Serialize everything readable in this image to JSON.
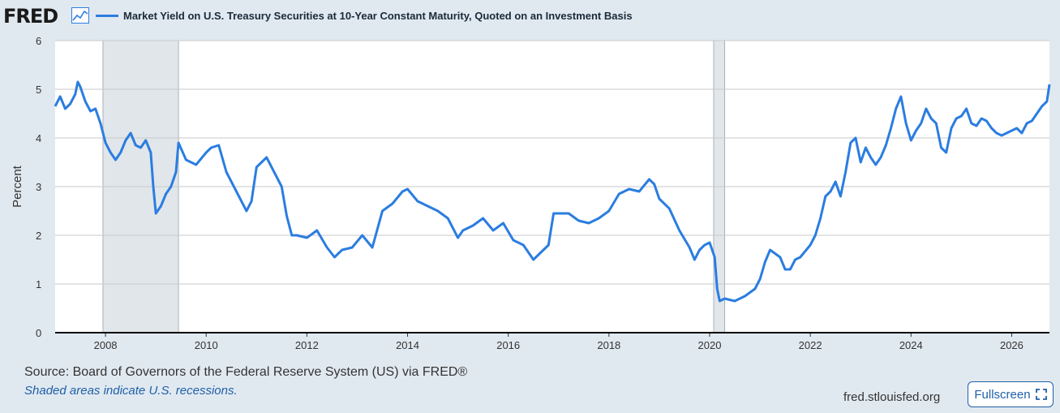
{
  "header": {
    "logo": "FRED",
    "logo_icon": "line-chart-icon",
    "series_title": "Market Yield on U.S. Treasury Securities at 10-Year Constant Maturity, Quoted on an Investment Basis"
  },
  "footer": {
    "source": "Source: Board of Governors of the Federal Reserve System (US) via FRED®",
    "note": "Shaded areas indicate U.S. recessions.",
    "site": "fred.stlouisfed.org",
    "fullscreen_label": "Fullscreen",
    "fullscreen_icon": "expand-corners-icon"
  },
  "colors": {
    "line": "#2b7de0",
    "plot_bg": "#ffffff",
    "recession": "#e1e6ea",
    "page_bg": "#e1e9f0"
  },
  "chart_data": {
    "type": "line",
    "title": "Market Yield on U.S. Treasury Securities at 10-Year Constant Maturity, Quoted on an Investment Basis",
    "xlabel": "",
    "ylabel": "Percent",
    "xlim": [
      2007.0,
      2026.75
    ],
    "ylim": [
      0,
      6
    ],
    "xticks": [
      2008,
      2010,
      2012,
      2014,
      2016,
      2018,
      2020,
      2022,
      2024,
      2026
    ],
    "yticks": [
      0,
      1,
      2,
      3,
      4,
      5,
      6
    ],
    "grid": "horizontal",
    "recessions": [
      [
        2007.95,
        2009.45
      ],
      [
        2020.08,
        2020.3
      ]
    ],
    "series": [
      {
        "name": "",
        "x": [
          2007.0,
          2007.1,
          2007.2,
          2007.3,
          2007.4,
          2007.45,
          2007.5,
          2007.6,
          2007.7,
          2007.8,
          2007.9,
          2008.0,
          2008.1,
          2008.2,
          2008.3,
          2008.4,
          2008.5,
          2008.6,
          2008.7,
          2008.8,
          2008.9,
          2008.95,
          2009.0,
          2009.1,
          2009.2,
          2009.3,
          2009.4,
          2009.45,
          2009.6,
          2009.8,
          2010.0,
          2010.1,
          2010.25,
          2010.4,
          2010.6,
          2010.8,
          2010.9,
          2011.0,
          2011.1,
          2011.2,
          2011.4,
          2011.5,
          2011.6,
          2011.7,
          2011.8,
          2012.0,
          2012.2,
          2012.4,
          2012.55,
          2012.7,
          2012.9,
          2013.1,
          2013.3,
          2013.5,
          2013.7,
          2013.9,
          2014.0,
          2014.2,
          2014.4,
          2014.6,
          2014.8,
          2015.0,
          2015.1,
          2015.3,
          2015.5,
          2015.7,
          2015.9,
          2016.1,
          2016.3,
          2016.5,
          2016.6,
          2016.8,
          2016.9,
          2017.0,
          2017.2,
          2017.4,
          2017.6,
          2017.8,
          2018.0,
          2018.2,
          2018.4,
          2018.6,
          2018.8,
          2018.9,
          2019.0,
          2019.2,
          2019.4,
          2019.6,
          2019.7,
          2019.8,
          2019.9,
          2020.0,
          2020.1,
          2020.15,
          2020.2,
          2020.3,
          2020.5,
          2020.7,
          2020.9,
          2021.0,
          2021.1,
          2021.2,
          2021.4,
          2021.5,
          2021.6,
          2021.7,
          2021.8,
          2022.0,
          2022.1,
          2022.2,
          2022.3,
          2022.4,
          2022.5,
          2022.6,
          2022.7,
          2022.8,
          2022.9,
          2023.0,
          2023.1,
          2023.2,
          2023.3,
          2023.4,
          2023.5,
          2023.6,
          2023.7,
          2023.8,
          2023.9,
          2024.0,
          2024.1,
          2024.2,
          2024.3,
          2024.4,
          2024.5,
          2024.6,
          2024.7,
          2024.8,
          2024.9,
          2025.0,
          2025.1,
          2025.2,
          2025.3,
          2025.4,
          2025.5,
          2025.6,
          2025.7,
          2025.8,
          2025.9,
          2026.0,
          2026.1,
          2026.2,
          2026.3,
          2026.4,
          2026.5,
          2026.6,
          2026.7,
          2026.75
        ],
        "values": [
          4.65,
          4.85,
          4.6,
          4.7,
          4.9,
          5.15,
          5.05,
          4.75,
          4.55,
          4.6,
          4.3,
          3.9,
          3.7,
          3.55,
          3.7,
          3.95,
          4.1,
          3.85,
          3.8,
          3.95,
          3.7,
          3.0,
          2.45,
          2.6,
          2.85,
          3.0,
          3.3,
          3.9,
          3.55,
          3.45,
          3.7,
          3.8,
          3.85,
          3.3,
          2.9,
          2.5,
          2.7,
          3.4,
          3.5,
          3.6,
          3.2,
          3.0,
          2.4,
          2.0,
          2.0,
          1.95,
          2.1,
          1.75,
          1.55,
          1.7,
          1.75,
          2.0,
          1.75,
          2.5,
          2.65,
          2.9,
          2.95,
          2.7,
          2.6,
          2.5,
          2.35,
          1.95,
          2.1,
          2.2,
          2.35,
          2.1,
          2.25,
          1.9,
          1.8,
          1.5,
          1.6,
          1.8,
          2.45,
          2.45,
          2.45,
          2.3,
          2.25,
          2.35,
          2.5,
          2.85,
          2.95,
          2.9,
          3.15,
          3.05,
          2.75,
          2.55,
          2.1,
          1.75,
          1.5,
          1.7,
          1.8,
          1.85,
          1.55,
          0.9,
          0.65,
          0.7,
          0.65,
          0.75,
          0.9,
          1.1,
          1.45,
          1.7,
          1.55,
          1.3,
          1.3,
          1.5,
          1.55,
          1.8,
          2.0,
          2.35,
          2.8,
          2.9,
          3.1,
          2.8,
          3.3,
          3.9,
          4.0,
          3.5,
          3.8,
          3.6,
          3.45,
          3.6,
          3.85,
          4.2,
          4.6,
          4.85,
          4.3,
          3.95,
          4.15,
          4.3,
          4.6,
          4.4,
          4.3,
          3.8,
          3.7,
          4.2,
          4.4,
          4.45,
          4.6,
          4.3,
          4.25,
          4.4,
          4.35,
          4.2,
          4.1,
          4.05,
          4.1,
          4.15,
          4.2,
          4.1,
          4.3,
          4.35,
          4.5,
          4.65,
          4.75,
          5.1
        ]
      }
    ]
  }
}
